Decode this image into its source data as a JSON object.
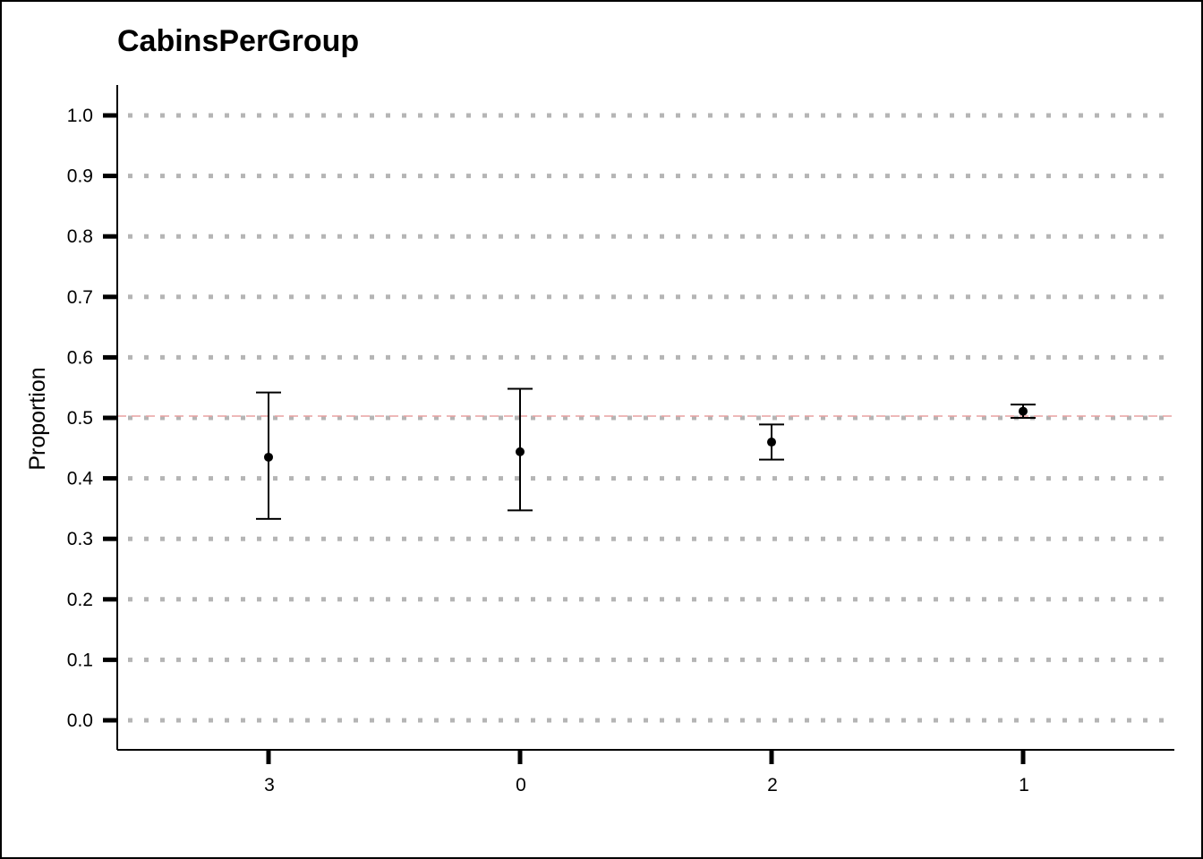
{
  "chart_data": {
    "type": "scatter",
    "title": "CabinsPerGroup",
    "xlabel": "",
    "ylabel": "Proportion",
    "categories": [
      "3",
      "0",
      "2",
      "1"
    ],
    "values": [
      0.435,
      0.444,
      0.46,
      0.511
    ],
    "lower": [
      0.333,
      0.347,
      0.431,
      0.5
    ],
    "upper": [
      0.542,
      0.548,
      0.489,
      0.522
    ],
    "ylim": [
      0.0,
      1.0
    ],
    "yticks": [
      "0.0",
      "0.1",
      "0.2",
      "0.3",
      "0.4",
      "0.5",
      "0.6",
      "0.7",
      "0.8",
      "0.9",
      "1.0"
    ],
    "reference_line": 0.503,
    "grid": true,
    "colors": {
      "reference_line": "#e8a0a0",
      "grid": "#b5b5b5",
      "marks": "#000000"
    }
  }
}
